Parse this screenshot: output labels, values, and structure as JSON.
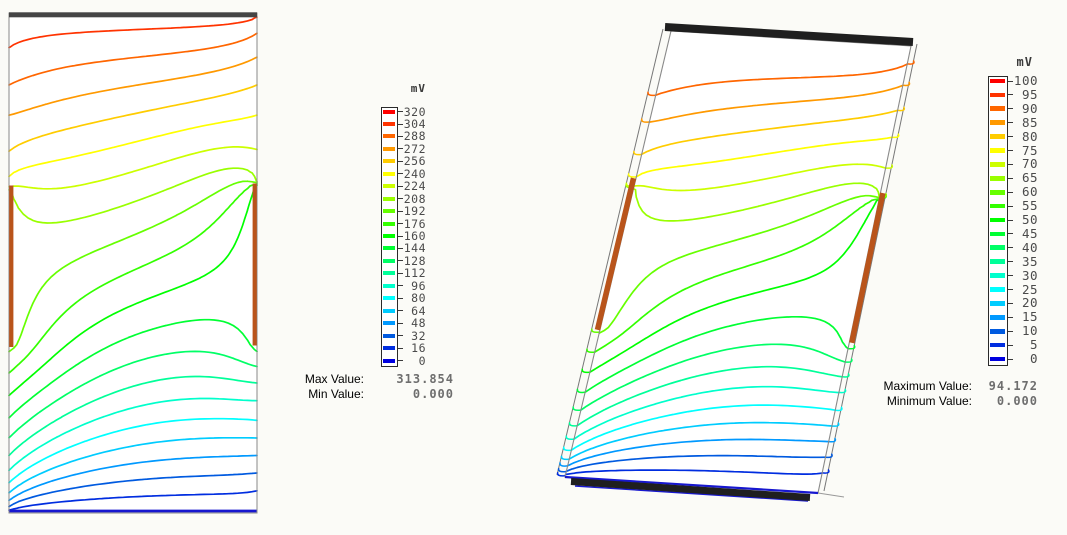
{
  "page": {
    "background": "#fbfbf7"
  },
  "colors": {
    "colormap": {
      "type": "rainbow",
      "hue_max_deg": 0,
      "hue_min_deg": 240,
      "note": "red at scale max, deep blue at 0"
    },
    "copper_electrode": "#b9541b",
    "dark_electrode_bar_2d": "#454545",
    "dark_electrode_bar_3d": "#1f1f1f",
    "zero_potential_blue": "#1717cf",
    "plot_outline": "#8a8a8a",
    "back_outline": "#777777"
  },
  "left_panel": {
    "colorbar": {
      "unit": "mV",
      "ticks": [
        "320",
        "304",
        "288",
        "272",
        "256",
        "240",
        "224",
        "208",
        "192",
        "176",
        "160",
        "144",
        "128",
        "112",
        "96",
        "80",
        "64",
        "48",
        "32",
        "16",
        "0"
      ]
    },
    "stats": {
      "max_label": "Max Value:",
      "max_value": "313.854",
      "min_label": "Min Value:",
      "min_value": "0.000"
    }
  },
  "right_panel": {
    "colorbar": {
      "unit": "mV",
      "ticks": [
        "100",
        "95",
        "90",
        "85",
        "80",
        "75",
        "70",
        "65",
        "60",
        "55",
        "50",
        "45",
        "40",
        "35",
        "30",
        "25",
        "20",
        "15",
        "10",
        "5",
        "0"
      ]
    },
    "stats": {
      "max_label": "Maximum Value:",
      "max_value": "94.172",
      "min_label": "Minimum Value:",
      "min_value": "0.000"
    }
  },
  "chart_data": [
    {
      "type": "heatmap",
      "subtype": "equipotential-contour-lines-2d-plate",
      "title": "",
      "unit": "mV",
      "scale_min": 0,
      "scale_max": 320,
      "level_step": 16,
      "contour_levels_mV": [
        16,
        32,
        48,
        64,
        80,
        96,
        112,
        128,
        144,
        160,
        176,
        192,
        208,
        224,
        240,
        256,
        272,
        288,
        304
      ],
      "max_value": 313.854,
      "min_value": 0.0,
      "legend_position": "right-of-plot",
      "electrodes": {
        "top_edge_bar": {
          "style": "dark-bar",
          "potential_mV": "max"
        },
        "bottom_edge_bar": {
          "style": "blue-line",
          "potential_mV": 0
        },
        "left_edge_bar": {
          "style": "copper",
          "span_v": [
            0.345,
            0.668
          ]
        },
        "right_edge_bar": {
          "style": "copper",
          "span_v": [
            0.341,
            0.665
          ]
        }
      },
      "edge_potential_profile_normalized": {
        "top": 0.98,
        "bottom": 0.0,
        "left": [
          [
            0,
            0.98
          ],
          [
            0.07,
            0.95
          ],
          [
            0.144,
            0.9
          ],
          [
            0.204,
            0.85
          ],
          [
            0.277,
            0.8
          ],
          [
            0.327,
            0.75
          ],
          [
            0.347,
            0.71
          ],
          [
            0.352,
            0.635
          ],
          [
            0.665,
            0.635
          ],
          [
            0.675,
            0.6
          ],
          [
            0.72,
            0.55
          ],
          [
            0.765,
            0.5
          ],
          [
            0.81,
            0.45
          ],
          [
            0.85,
            0.4
          ],
          [
            0.885,
            0.35
          ],
          [
            0.915,
            0.3
          ],
          [
            0.94,
            0.25
          ],
          [
            0.96,
            0.2
          ],
          [
            0.975,
            0.15
          ],
          [
            0.988,
            0.1
          ],
          [
            0.997,
            0.05
          ],
          [
            1,
            0.0
          ]
        ],
        "right": [
          [
            0,
            0.98
          ],
          [
            0.006,
            0.95
          ],
          [
            0.04,
            0.9
          ],
          [
            0.088,
            0.85
          ],
          [
            0.144,
            0.8
          ],
          [
            0.204,
            0.75
          ],
          [
            0.273,
            0.7
          ],
          [
            0.337,
            0.655
          ],
          [
            0.341,
            0.47
          ],
          [
            0.665,
            0.47
          ],
          [
            0.677,
            0.45
          ],
          [
            0.707,
            0.4
          ],
          [
            0.74,
            0.35
          ],
          [
            0.775,
            0.3
          ],
          [
            0.815,
            0.25
          ],
          [
            0.85,
            0.2
          ],
          [
            0.885,
            0.15
          ],
          [
            0.92,
            0.1
          ],
          [
            0.955,
            0.05
          ],
          [
            1,
            0.0
          ]
        ]
      }
    },
    {
      "type": "heatmap",
      "subtype": "equipotential-contour-lines-3d-slab",
      "title": "",
      "unit": "mV",
      "scale_min": 0,
      "scale_max": 100,
      "level_step": 5,
      "contour_levels_mV": [
        5,
        10,
        15,
        20,
        25,
        30,
        35,
        40,
        45,
        50,
        55,
        60,
        65,
        70,
        75,
        80,
        85,
        90
      ],
      "max_value": 94.172,
      "min_value": 0.0,
      "legend_position": "right-of-plot",
      "view": "tilted-3d-slab",
      "shares_field_with_plot_index": 0,
      "electrodes": {
        "top_edge_bar": {
          "style": "dark-3d-bar",
          "potential_mV": "max"
        },
        "bottom_edge_bar": {
          "style": "dark-3d-bar-with-blue-zero-line",
          "potential_mV": 0
        },
        "left_edge_bar": {
          "style": "copper",
          "span_v": [
            0.33,
            0.67
          ]
        },
        "right_edge_bar": {
          "style": "copper",
          "span_v": [
            0.329,
            0.664
          ]
        }
      }
    }
  ]
}
